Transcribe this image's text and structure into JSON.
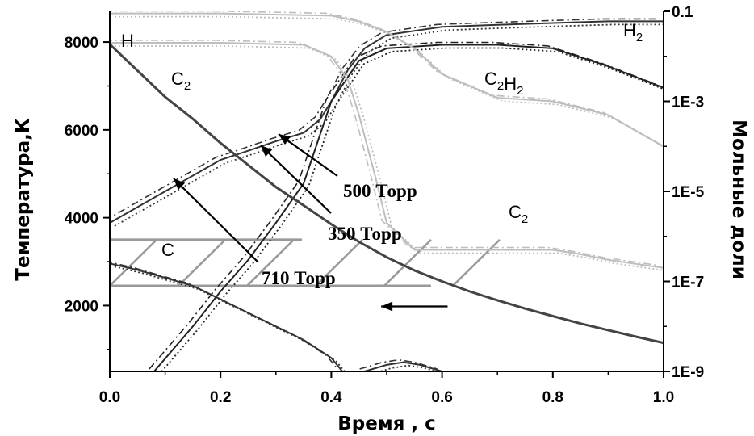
{
  "chart_data": {
    "type": "line",
    "xlabel": "Время , с",
    "ylabel_left": "Температура,К",
    "ylabel_right": "Мольные доли",
    "xlim": [
      0.0,
      1.0
    ],
    "ylim_left": [
      500,
      8700
    ],
    "ylim_right": [
      1e-09,
      0.1
    ],
    "right_log_scale": true,
    "x_ticks": [
      "0.0",
      "0.2",
      "0.4",
      "0.6",
      "0.8",
      "1.0"
    ],
    "y_left_ticks": [
      "2000",
      "4000",
      "6000",
      "8000"
    ],
    "y_right_ticks": [
      "1E-9",
      "1E-7",
      "1E-5",
      "1E-3",
      "0.1"
    ],
    "species_labels": {
      "H": "H",
      "H2": "H2",
      "C2_top": "C2",
      "C2H2": "C2H2",
      "C2_mid": "C2",
      "C": "C"
    },
    "pressure_labels": [
      "500 Торр",
      "350 Торр",
      "710 Торр"
    ],
    "temperature_curve": {
      "axis": "left",
      "x": [
        0.0,
        0.05,
        0.1,
        0.15,
        0.2,
        0.25,
        0.3,
        0.35,
        0.4,
        0.45,
        0.5,
        0.55,
        0.6,
        0.65,
        0.7,
        0.75,
        0.8,
        0.85,
        0.9,
        0.95,
        1.0
      ],
      "y": [
        7950,
        7350,
        6750,
        6250,
        5700,
        5200,
        4700,
        4280,
        3850,
        3450,
        3100,
        2800,
        2550,
        2320,
        2120,
        1930,
        1760,
        1590,
        1440,
        1290,
        1150
      ]
    },
    "series": [
      {
        "name": "H2",
        "axis": "right",
        "x": [
          0.0,
          0.1,
          0.2,
          0.25,
          0.3,
          0.35,
          0.38,
          0.4,
          0.43,
          0.46,
          0.5,
          0.6,
          0.7,
          0.8,
          0.9,
          1.0
        ],
        "y": [
          2e-06,
          1e-05,
          5e-05,
          8e-05,
          0.00013,
          0.0002,
          0.0004,
          0.001,
          0.005,
          0.015,
          0.03,
          0.045,
          0.05,
          0.055,
          0.06,
          0.06
        ]
      },
      {
        "name": "C2H2",
        "axis": "right",
        "x": [
          0.08,
          0.15,
          0.2,
          0.25,
          0.3,
          0.35,
          0.4,
          0.45,
          0.5,
          0.6,
          0.7,
          0.8,
          0.9,
          1.0
        ],
        "y": [
          1e-09,
          1e-08,
          6e-08,
          3e-07,
          2e-06,
          1.5e-05,
          0.001,
          0.008,
          0.015,
          0.018,
          0.018,
          0.015,
          0.006,
          0.002
        ]
      },
      {
        "name": "H",
        "axis": "right",
        "x": [
          0.0,
          0.2,
          0.4,
          0.45,
          0.5,
          0.55,
          0.6,
          0.7,
          0.8,
          0.9,
          1.0
        ],
        "y": [
          0.09,
          0.09,
          0.08,
          0.06,
          0.035,
          0.015,
          0.004,
          0.0012,
          0.001,
          0.0005,
          0.0001
        ]
      },
      {
        "name": "C2",
        "axis": "right",
        "x": [
          0.0,
          0.2,
          0.35,
          0.4,
          0.43,
          0.45,
          0.48,
          0.5,
          0.55,
          0.6,
          0.7,
          0.8,
          0.85,
          0.9,
          1.0
        ],
        "y": [
          0.02,
          0.02,
          0.018,
          0.01,
          0.003,
          0.0005,
          2e-05,
          2e-06,
          5e-07,
          5e-07,
          5e-07,
          5e-07,
          4e-07,
          3e-07,
          2e-07
        ]
      },
      {
        "name": "C",
        "axis": "right",
        "x": [
          0.0,
          0.05,
          0.1,
          0.15,
          0.2,
          0.25,
          0.3,
          0.35,
          0.4,
          0.42
        ],
        "y": [
          2.5e-07,
          1.8e-07,
          1.2e-07,
          8e-08,
          4e-08,
          2e-08,
          1e-08,
          5e-09,
          2e-09,
          1e-09
        ]
      },
      {
        "name": "C-bump",
        "axis": "right",
        "x": [
          0.46,
          0.5,
          0.53,
          0.56,
          0.6
        ],
        "y": [
          1e-09,
          1.4e-09,
          1.6e-09,
          1.4e-09,
          1e-09
        ]
      }
    ],
    "hatch_region": {
      "x": [
        0.0,
        0.58
      ],
      "y_left": [
        2450,
        3500
      ]
    },
    "arrow_left": {
      "from": [
        0.61,
        1980
      ],
      "to": [
        0.49,
        1980
      ]
    }
  }
}
